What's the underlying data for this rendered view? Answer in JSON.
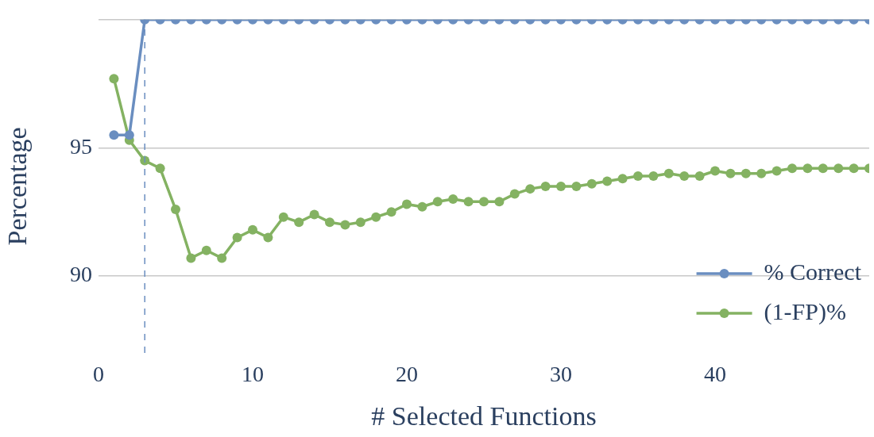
{
  "chart_data": {
    "type": "line",
    "xlabel": "# Selected Functions",
    "ylabel": "Percentage",
    "x": [
      1,
      2,
      3,
      4,
      5,
      6,
      7,
      8,
      9,
      10,
      11,
      12,
      13,
      14,
      15,
      16,
      17,
      18,
      19,
      20,
      21,
      22,
      23,
      24,
      25,
      26,
      27,
      28,
      29,
      30,
      31,
      32,
      33,
      34,
      35,
      36,
      37,
      38,
      39,
      40,
      41,
      42,
      43,
      44,
      45,
      46,
      47,
      48,
      49,
      50
    ],
    "series": [
      {
        "name": "% Correct",
        "color": "#6a8ec0",
        "values": [
          95.5,
          95.5,
          100,
          100,
          100,
          100,
          100,
          100,
          100,
          100,
          100,
          100,
          100,
          100,
          100,
          100,
          100,
          100,
          100,
          100,
          100,
          100,
          100,
          100,
          100,
          100,
          100,
          100,
          100,
          100,
          100,
          100,
          100,
          100,
          100,
          100,
          100,
          100,
          100,
          100,
          100,
          100,
          100,
          100,
          100,
          100,
          100,
          100,
          100,
          100
        ]
      },
      {
        "name": "(1-FP)%",
        "color": "#84b262",
        "values": [
          97.7,
          95.3,
          94.5,
          94.2,
          92.6,
          90.7,
          91.0,
          90.7,
          91.5,
          91.8,
          91.5,
          92.3,
          92.1,
          92.4,
          92.1,
          92.0,
          92.1,
          92.3,
          92.5,
          92.8,
          92.7,
          92.9,
          93.0,
          92.9,
          92.9,
          92.9,
          93.2,
          93.4,
          93.5,
          93.5,
          93.5,
          93.6,
          93.7,
          93.8,
          93.9,
          93.9,
          94.0,
          93.9,
          93.9,
          94.1,
          94.0,
          94.0,
          94.0,
          94.1,
          94.2,
          94.2,
          94.2,
          94.2,
          94.2,
          94.2
        ]
      }
    ],
    "xlim": [
      0,
      50
    ],
    "xticks": [
      0,
      10,
      20,
      30,
      40
    ],
    "ylim": [
      87,
      100
    ],
    "yticks": [
      90,
      95,
      {
        "value": 100,
        "label": null
      }
    ],
    "ref_lines": [
      {
        "axis": "x",
        "value": 3,
        "color": "#6a8ec0",
        "line_style": "dashed"
      }
    ],
    "grid": "y",
    "legend": "bottom right",
    "marker": "circle",
    "line_style": "solid"
  }
}
